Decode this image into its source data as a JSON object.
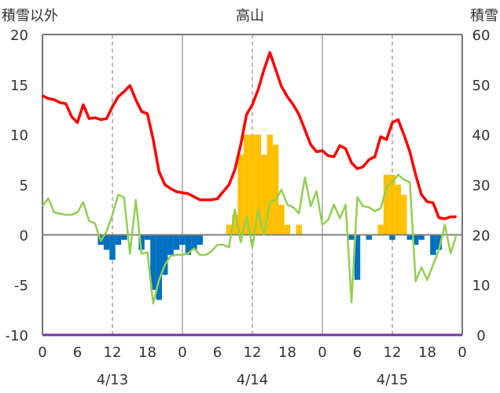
{
  "chart_data": {
    "type": "bar",
    "title": "高山",
    "ylabel_left": "積雪以外",
    "ylabel_right": "積雪",
    "ylim_left": [
      -10,
      20
    ],
    "ylim_right": [
      0,
      60
    ],
    "yticks_left": [
      "20",
      "15",
      "10",
      "5",
      "0",
      "-5",
      "-10"
    ],
    "yticks_right": [
      "60",
      "50",
      "40",
      "30",
      "20",
      "10",
      "0"
    ],
    "xlim_hours": [
      0,
      72
    ],
    "xticks": [
      "0",
      "6",
      "12",
      "18",
      "0",
      "6",
      "12",
      "18",
      "0",
      "6",
      "12",
      "18",
      "0"
    ],
    "date_labels": [
      "4/13",
      "4/14",
      "4/15"
    ],
    "grid": "dashed verticals every 12h, solid verticals at midnight",
    "colors": {
      "temperature": "#ff0000",
      "snow_depth": "#92d050",
      "snowfall": "#ffc000",
      "precip_neg": "#0070c0",
      "baseline": "#7030a0",
      "zero_line": "#808080"
    },
    "series": [
      {
        "key": "temperature",
        "axis": "left",
        "points": [
          [
            0,
            13.9
          ],
          [
            1,
            13.6
          ],
          [
            2,
            13.5
          ],
          [
            3,
            13.2
          ],
          [
            4,
            13.1
          ],
          [
            5,
            11.8
          ],
          [
            6,
            11.2
          ],
          [
            7,
            13.0
          ],
          [
            8,
            11.6
          ],
          [
            9,
            11.7
          ],
          [
            10,
            11.5
          ],
          [
            11,
            11.6
          ],
          [
            12,
            12.8
          ],
          [
            13,
            13.8
          ],
          [
            14,
            14.3
          ],
          [
            15,
            14.9
          ],
          [
            16,
            13.5
          ],
          [
            17,
            12.3
          ],
          [
            18,
            12.1
          ],
          [
            19,
            9.5
          ],
          [
            20,
            6.3
          ],
          [
            21,
            5.0
          ],
          [
            22,
            4.6
          ],
          [
            23,
            4.3
          ],
          [
            24,
            4.2
          ],
          [
            25,
            4.1
          ],
          [
            26,
            3.8
          ],
          [
            27,
            3.5
          ],
          [
            28,
            3.5
          ],
          [
            29,
            3.5
          ],
          [
            30,
            3.6
          ],
          [
            31,
            4.3
          ],
          [
            32,
            5.0
          ],
          [
            33,
            6.5
          ],
          [
            34,
            9.0
          ],
          [
            35,
            12.0
          ],
          [
            36,
            13.0
          ],
          [
            37,
            14.5
          ],
          [
            38,
            16.5
          ],
          [
            39,
            18.2
          ],
          [
            40,
            16.5
          ],
          [
            41,
            14.8
          ],
          [
            42,
            13.8
          ],
          [
            43,
            13.0
          ],
          [
            44,
            12.0
          ],
          [
            45,
            10.5
          ],
          [
            46,
            9.0
          ],
          [
            47,
            8.3
          ],
          [
            48,
            8.4
          ],
          [
            49,
            7.9
          ],
          [
            50,
            7.8
          ],
          [
            51,
            8.9
          ],
          [
            52,
            8.6
          ],
          [
            53,
            7.2
          ],
          [
            54,
            6.6
          ],
          [
            55,
            6.8
          ],
          [
            56,
            7.5
          ],
          [
            57,
            7.8
          ],
          [
            58,
            9.8
          ],
          [
            59,
            9.5
          ],
          [
            60,
            11.2
          ],
          [
            61,
            11.5
          ],
          [
            62,
            10.0
          ],
          [
            63,
            8.3
          ],
          [
            64,
            6.0
          ],
          [
            65,
            4.0
          ],
          [
            66,
            3.3
          ],
          [
            67,
            3.2
          ],
          [
            68,
            1.7
          ],
          [
            69,
            1.6
          ],
          [
            70,
            1.8
          ],
          [
            71,
            1.8
          ]
        ]
      },
      {
        "key": "snow_depth",
        "axis": "right",
        "points": [
          [
            0,
            25.7
          ],
          [
            1,
            27.3
          ],
          [
            2,
            24.5
          ],
          [
            3,
            24.2
          ],
          [
            4,
            24.0
          ],
          [
            5,
            24.0
          ],
          [
            6,
            24.5
          ],
          [
            7,
            26.5
          ],
          [
            8,
            22.8
          ],
          [
            9,
            22.3
          ],
          [
            10,
            18.8
          ],
          [
            11,
            20.7
          ],
          [
            12,
            24.0
          ],
          [
            13,
            28.0
          ],
          [
            14,
            27.5
          ],
          [
            15,
            16.2
          ],
          [
            16,
            27.0
          ],
          [
            17,
            16.2
          ],
          [
            18,
            16.5
          ],
          [
            19,
            6.3
          ],
          [
            20,
            11.0
          ],
          [
            21,
            14.0
          ],
          [
            22,
            15.8
          ],
          [
            23,
            16.0
          ],
          [
            24,
            16.0
          ],
          [
            25,
            16.3
          ],
          [
            26,
            17.3
          ],
          [
            27,
            16.0
          ],
          [
            28,
            16.0
          ],
          [
            29,
            16.7
          ],
          [
            30,
            18.0
          ],
          [
            31,
            18.0
          ],
          [
            32,
            17.5
          ],
          [
            33,
            25.0
          ],
          [
            34,
            18.5
          ],
          [
            35,
            23.7
          ],
          [
            36,
            17.5
          ],
          [
            37,
            25.0
          ],
          [
            38,
            20.0
          ],
          [
            39,
            26.5
          ],
          [
            40,
            27.0
          ],
          [
            41,
            29.0
          ],
          [
            42,
            26.0
          ],
          [
            43,
            25.5
          ],
          [
            44,
            24.3
          ],
          [
            45,
            31.5
          ],
          [
            46,
            25.7
          ],
          [
            47,
            28.7
          ],
          [
            48,
            22.0
          ],
          [
            49,
            23.0
          ],
          [
            50,
            26.0
          ],
          [
            51,
            23.3
          ],
          [
            52,
            26.0
          ],
          [
            53,
            6.5
          ],
          [
            54,
            27.5
          ],
          [
            55,
            25.7
          ],
          [
            56,
            25.5
          ],
          [
            57,
            24.7
          ],
          [
            58,
            25.3
          ],
          [
            59,
            29.5
          ],
          [
            60,
            30.5
          ],
          [
            61,
            32.0
          ],
          [
            62,
            31.0
          ],
          [
            63,
            30.5
          ],
          [
            64,
            10.7
          ],
          [
            65,
            13.5
          ],
          [
            66,
            11.0
          ],
          [
            67,
            14.0
          ],
          [
            68,
            17.0
          ],
          [
            69,
            22.0
          ],
          [
            70,
            16.3
          ],
          [
            71,
            20.0
          ]
        ]
      },
      {
        "key": "snowfall",
        "axis": "left",
        "bars": [
          [
            32,
            1
          ],
          [
            33,
            2
          ],
          [
            34,
            8
          ],
          [
            35,
            10
          ],
          [
            36,
            10
          ],
          [
            37,
            10
          ],
          [
            38,
            8
          ],
          [
            39,
            10
          ],
          [
            40,
            9
          ],
          [
            41,
            3
          ],
          [
            42,
            1
          ],
          [
            44,
            1
          ],
          [
            58,
            1
          ],
          [
            59,
            6
          ],
          [
            60,
            6
          ],
          [
            61,
            5
          ],
          [
            62,
            4
          ]
        ]
      },
      {
        "key": "precip_neg",
        "axis": "left",
        "bars": [
          [
            10,
            -1
          ],
          [
            11,
            -1.5
          ],
          [
            12,
            -2.5
          ],
          [
            13,
            -1
          ],
          [
            14,
            -0.5
          ],
          [
            17,
            -1.5
          ],
          [
            18,
            -0.5
          ],
          [
            19,
            -5.5
          ],
          [
            20,
            -6.5
          ],
          [
            21,
            -4
          ],
          [
            22,
            -2
          ],
          [
            23,
            -1.5
          ],
          [
            24,
            -1
          ],
          [
            25,
            -2
          ],
          [
            26,
            -1.5
          ],
          [
            27,
            -1
          ],
          [
            53,
            -0.5
          ],
          [
            54,
            -4.5
          ],
          [
            56,
            -0.5
          ],
          [
            60,
            -0.5
          ],
          [
            63,
            -0.5
          ],
          [
            64,
            -1
          ],
          [
            65,
            -0.5
          ],
          [
            67,
            -2
          ],
          [
            68,
            -1.5
          ]
        ]
      }
    ]
  }
}
